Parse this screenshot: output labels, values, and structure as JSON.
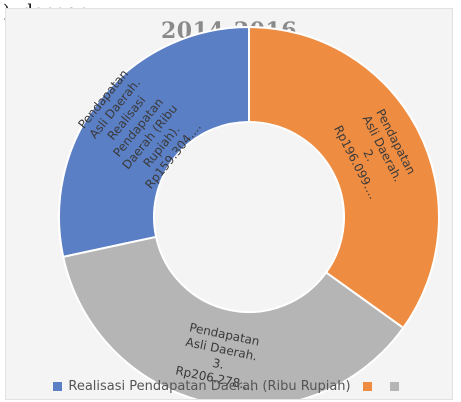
{
  "header_fragment": "), dengan",
  "chart_data": {
    "type": "pie",
    "donut": true,
    "title": "2014-2016",
    "slices": [
      {
        "label": "Pendapatan Asli Daerah. Realisasi Pendapatan Daerah (Ribu Rupiah). Rp159.304....",
        "value": 159304,
        "color": "#5b7fc4"
      },
      {
        "label": "Pendapatan Asli Daerah. 3. Rp206.278....",
        "value": 206278,
        "color": "#b5b5b5"
      },
      {
        "label": "Pendapatan Asli Daerah. 2. Rp196.099....",
        "value": 196099,
        "color": "#ee8c42"
      }
    ],
    "start_order": "counterclockwise-from-top",
    "legend": {
      "placement": "bottom",
      "entries": [
        {
          "name": "Realisasi Pendapatan Daerah (Ribu Rupiah)",
          "color": "#5b7fc4"
        },
        {
          "name": "",
          "color": "#ee8c42"
        },
        {
          "name": "",
          "color": "#b5b5b5"
        }
      ]
    }
  }
}
